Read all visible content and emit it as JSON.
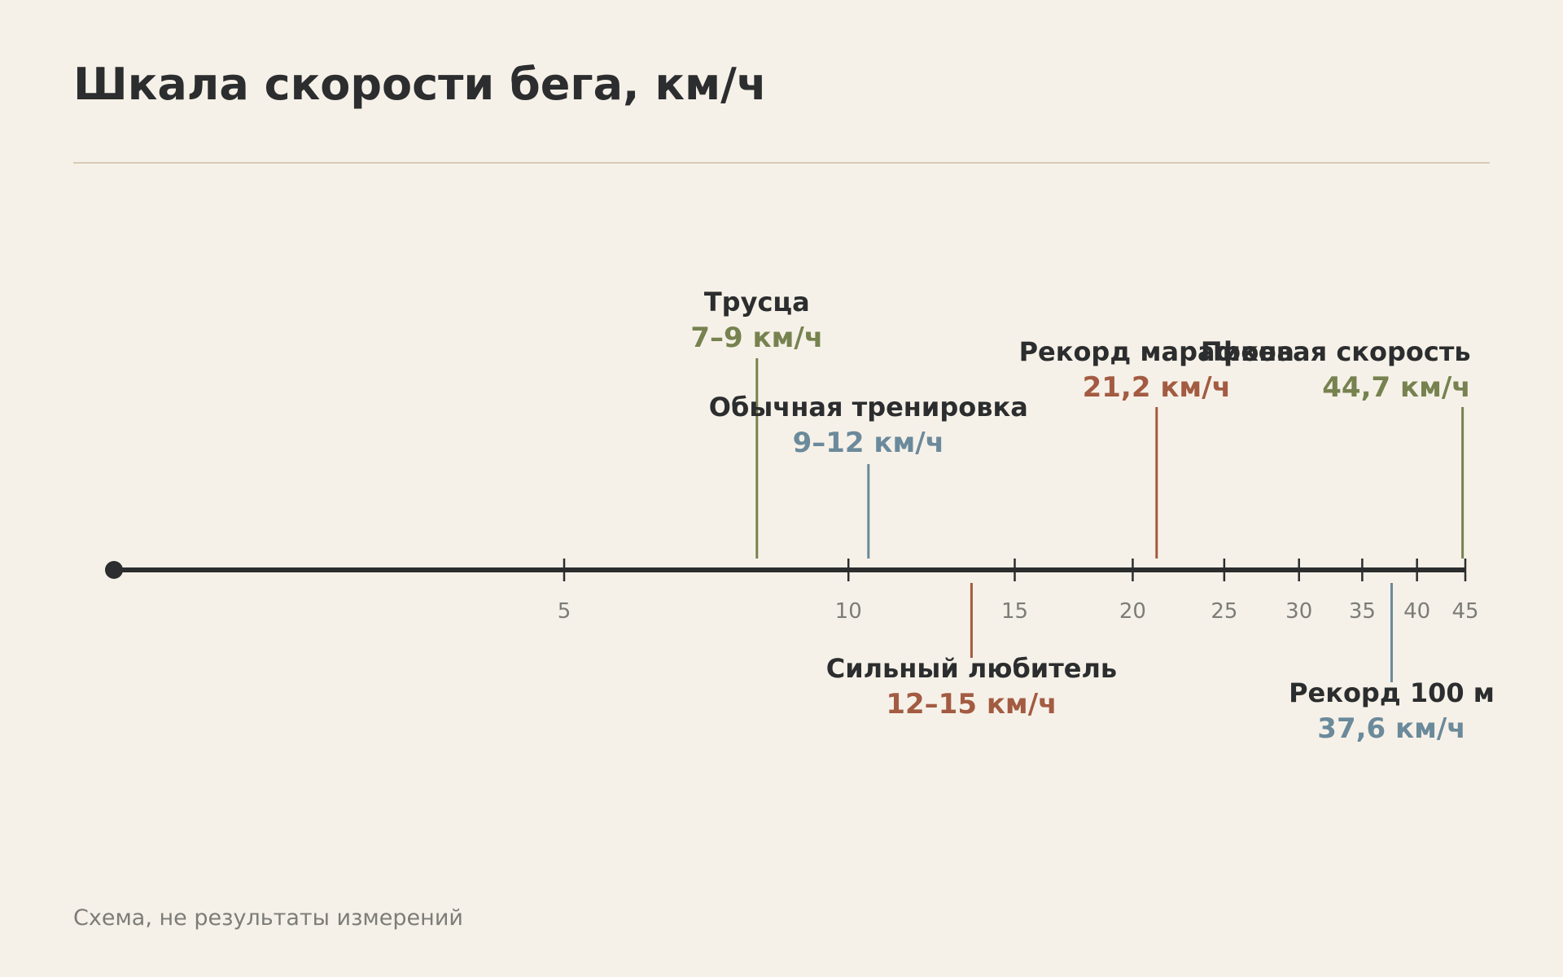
{
  "title": "Шкала скорости бега, км/ч",
  "footnote": "Схема, не результаты измерений",
  "colors": {
    "background": "#f6f1e8",
    "text": "#2b2d2e",
    "muted": "#7c7c78",
    "rule": "#d8cbb5",
    "axis": "#2b2d2e",
    "olive": "#76824f",
    "slate": "#6b8a9b",
    "rust": "#a35b42"
  },
  "axis": {
    "scale": "log",
    "ticks": [
      "5",
      "10",
      "15",
      "20",
      "25",
      "30",
      "35",
      "40",
      "45"
    ]
  },
  "events": [
    {
      "label": "Трусца",
      "value": "7–9 км/ч",
      "speed": 8,
      "side": "above",
      "level": 2,
      "color": "olive"
    },
    {
      "label": "Обычная тренировка",
      "value": "9–12 км/ч",
      "speed": 10.5,
      "side": "above",
      "level": 0,
      "color": "slate"
    },
    {
      "label": "Сильный любитель",
      "value": "12–15 км/ч",
      "speed": 13.5,
      "side": "below",
      "level": 0,
      "color": "rust"
    },
    {
      "label": "Рекорд марафона",
      "value": "21,2 км/ч",
      "speed": 21.2,
      "side": "above",
      "level": 1,
      "color": "rust"
    },
    {
      "label": "Рекорд 100 м",
      "value": "37,6 км/ч",
      "speed": 37.6,
      "side": "below",
      "level": 1,
      "color": "slate"
    },
    {
      "label": "Пиковая скорость",
      "value": "44,7 км/ч",
      "speed": 44.7,
      "side": "above",
      "level": 1,
      "color": "olive",
      "align": "end"
    }
  ]
}
